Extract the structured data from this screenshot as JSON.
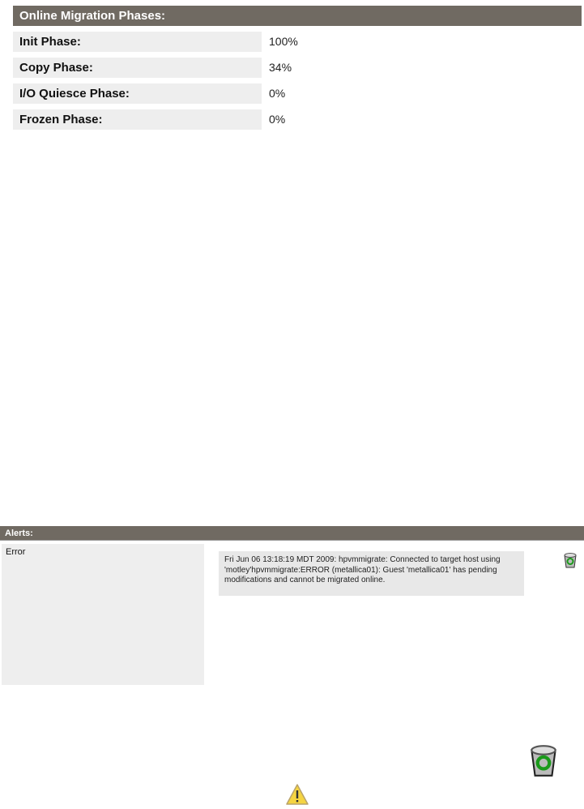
{
  "phases": {
    "title": "Online Migration Phases:",
    "rows": [
      {
        "label": "Init Phase:",
        "value": "100%"
      },
      {
        "label": "Copy Phase:",
        "value": "34%"
      },
      {
        "label": "I/O Quiesce Phase:",
        "value": "0%"
      },
      {
        "label": "Frozen Phase:",
        "value": "0%"
      }
    ]
  },
  "alerts": {
    "title": "Alerts:",
    "severity": "Error",
    "message": "Fri Jun 06 13:18:19 MDT 2009: hpvmmigrate: Connected to target host using 'motley'hpvmmigrate:ERROR (metallica01): Guest 'metallica01' has pending modifications and cannot be migrated online."
  },
  "icons": [
    "recycle-bin-icon",
    "warning-icon"
  ]
}
